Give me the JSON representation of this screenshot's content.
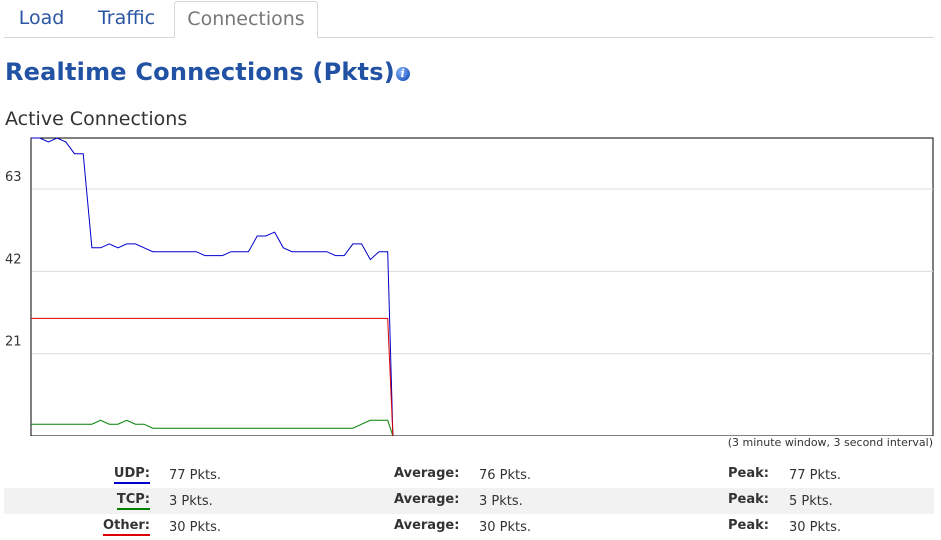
{
  "tabs": [
    {
      "label": "Load",
      "active": false
    },
    {
      "label": "Traffic",
      "active": false
    },
    {
      "label": "Connections",
      "active": true
    }
  ],
  "page_title": "Realtime Connections (Pkts)",
  "info_icon": "info-icon",
  "section_title": "Active Connections",
  "caption": "(3 minute window, 3 second interval)",
  "colors": {
    "udp": "#0000cc",
    "tcp": "#008000",
    "other": "#dd0000"
  },
  "chart_data": {
    "type": "line",
    "y_ticks": [
      21,
      42,
      63
    ],
    "ylim": [
      0,
      76
    ],
    "x_count": 60,
    "grid": true,
    "series": [
      {
        "name": "UDP",
        "color": "#0000cc",
        "values": [
          76,
          76,
          75,
          76,
          75,
          72,
          72,
          48,
          48,
          49,
          48,
          49,
          49,
          48,
          47,
          47,
          47,
          47,
          47,
          47,
          46,
          46,
          46,
          47,
          47,
          47,
          51,
          51,
          52,
          48,
          47,
          47,
          47,
          47,
          47,
          46,
          46,
          49,
          49,
          45,
          47,
          47,
          0
        ]
      },
      {
        "name": "TCP",
        "color": "#008000",
        "values": [
          3,
          3,
          3,
          3,
          3,
          3,
          3,
          3,
          4,
          3,
          3,
          4,
          3,
          3,
          2,
          2,
          2,
          2,
          2,
          2,
          2,
          2,
          2,
          2,
          2,
          2,
          2,
          2,
          2,
          2,
          2,
          2,
          2,
          2,
          2,
          2,
          2,
          2,
          3,
          4,
          4,
          4,
          0
        ]
      },
      {
        "name": "Other",
        "color": "#dd0000",
        "values": [
          30,
          30,
          30,
          30,
          30,
          30,
          30,
          30,
          30,
          30,
          30,
          30,
          30,
          30,
          30,
          30,
          30,
          30,
          30,
          30,
          30,
          30,
          30,
          30,
          30,
          30,
          30,
          30,
          30,
          30,
          30,
          30,
          30,
          30,
          30,
          30,
          30,
          30,
          30,
          30,
          30,
          30,
          0
        ]
      }
    ]
  },
  "stats": [
    {
      "label": "UDP:",
      "value": "77 Pkts.",
      "avg_label": "Average:",
      "avg": "76 Pkts.",
      "peak_label": "Peak:",
      "peak": "77 Pkts.",
      "color": "#0000cc"
    },
    {
      "label": "TCP:",
      "value": "3 Pkts.",
      "avg_label": "Average:",
      "avg": "3 Pkts.",
      "peak_label": "Peak:",
      "peak": "5 Pkts.",
      "color": "#008000"
    },
    {
      "label": "Other:",
      "value": "30 Pkts.",
      "avg_label": "Average:",
      "avg": "30 Pkts.",
      "peak_label": "Peak:",
      "peak": "30 Pkts.",
      "color": "#dd0000"
    }
  ]
}
